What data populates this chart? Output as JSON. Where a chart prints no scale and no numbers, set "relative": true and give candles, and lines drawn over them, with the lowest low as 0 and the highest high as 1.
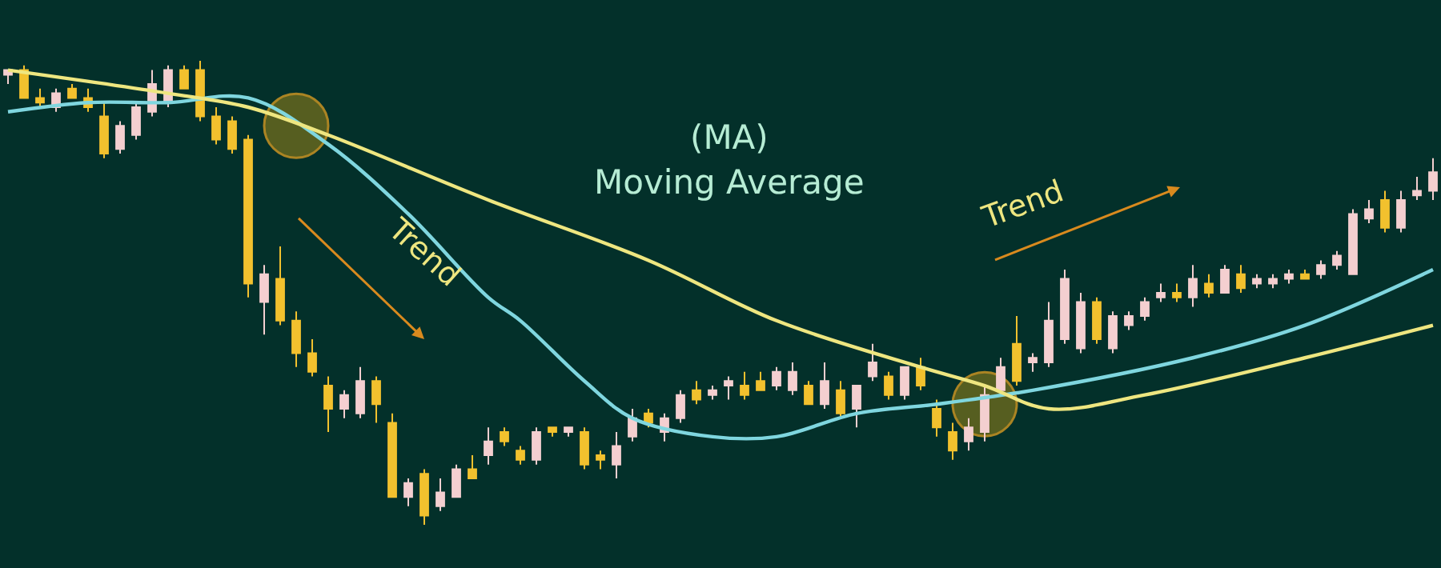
{
  "chart_data": {
    "type": "candlestick",
    "relative": true,
    "title": "(MA)",
    "subtitle": "Moving Average",
    "categories": [
      null,
      null,
      null,
      null,
      null,
      null,
      null,
      null,
      null,
      null,
      null,
      null,
      null,
      null,
      null,
      null,
      null,
      null,
      null,
      null,
      null,
      null,
      null,
      null,
      null,
      null,
      null,
      null,
      null,
      null,
      null,
      null,
      null,
      null,
      null,
      null,
      null,
      null,
      null,
      null,
      null,
      null,
      null,
      null,
      null,
      null,
      null,
      null,
      null,
      null,
      null,
      null,
      null,
      null,
      null,
      null,
      null,
      null,
      null,
      null,
      null,
      null,
      null,
      null,
      null,
      null,
      null,
      null,
      null,
      null,
      null,
      null,
      null,
      null,
      null,
      null,
      null,
      null,
      null,
      null,
      null,
      null,
      null,
      null,
      null,
      null,
      null,
      null,
      null,
      null
    ],
    "ohlc": [
      [
        0.97,
        0.98,
        0.95,
        0.98
      ],
      [
        0.98,
        0.99,
        0.92,
        0.92
      ],
      [
        0.92,
        0.94,
        0.9,
        0.91
      ],
      [
        0.9,
        0.94,
        0.89,
        0.93
      ],
      [
        0.94,
        0.95,
        0.92,
        0.92
      ],
      [
        0.92,
        0.94,
        0.89,
        0.9
      ],
      [
        0.88,
        0.91,
        0.79,
        0.8
      ],
      [
        0.81,
        0.87,
        0.8,
        0.86
      ],
      [
        0.84,
        0.91,
        0.83,
        0.9
      ],
      [
        0.89,
        0.98,
        0.88,
        0.95
      ],
      [
        0.91,
        0.99,
        0.9,
        0.98
      ],
      [
        0.98,
        0.99,
        0.94,
        0.94
      ],
      [
        0.98,
        1.0,
        0.87,
        0.88
      ],
      [
        0.88,
        0.9,
        0.82,
        0.83
      ],
      [
        0.87,
        0.88,
        0.8,
        0.81
      ],
      [
        0.83,
        0.84,
        0.49,
        0.52
      ],
      [
        0.48,
        0.56,
        0.41,
        0.54
      ],
      [
        0.53,
        0.6,
        0.43,
        0.44
      ],
      [
        0.44,
        0.46,
        0.34,
        0.37
      ],
      [
        0.37,
        0.4,
        0.32,
        0.33
      ],
      [
        0.3,
        0.32,
        0.2,
        0.25
      ],
      [
        0.25,
        0.29,
        0.23,
        0.28
      ],
      [
        0.24,
        0.34,
        0.23,
        0.31
      ],
      [
        0.31,
        0.32,
        0.22,
        0.26
      ],
      [
        0.22,
        0.24,
        0.06,
        0.06
      ],
      [
        0.06,
        0.1,
        0.04,
        0.09
      ],
      [
        0.11,
        0.12,
        0.0,
        0.02
      ],
      [
        0.04,
        0.1,
        0.03,
        0.07
      ],
      [
        0.06,
        0.13,
        0.06,
        0.12
      ],
      [
        0.12,
        0.15,
        0.1,
        0.1
      ],
      [
        0.15,
        0.21,
        0.13,
        0.18
      ],
      [
        0.2,
        0.21,
        0.17,
        0.18
      ],
      [
        0.16,
        0.17,
        0.13,
        0.14
      ],
      [
        0.14,
        0.21,
        0.13,
        0.2
      ],
      [
        0.21,
        0.21,
        0.19,
        0.2
      ],
      [
        0.2,
        0.21,
        0.19,
        0.21
      ],
      [
        0.2,
        0.21,
        0.12,
        0.13
      ],
      [
        0.15,
        0.16,
        0.12,
        0.14
      ],
      [
        0.13,
        0.2,
        0.1,
        0.17
      ],
      [
        0.19,
        0.25,
        0.18,
        0.23
      ],
      [
        0.24,
        0.25,
        0.21,
        0.22
      ],
      [
        0.2,
        0.24,
        0.18,
        0.23
      ],
      [
        0.23,
        0.29,
        0.22,
        0.28
      ],
      [
        0.29,
        0.31,
        0.26,
        0.27
      ],
      [
        0.28,
        0.3,
        0.27,
        0.29
      ],
      [
        0.3,
        0.32,
        0.27,
        0.31
      ],
      [
        0.3,
        0.33,
        0.27,
        0.28
      ],
      [
        0.31,
        0.33,
        0.29,
        0.29
      ],
      [
        0.3,
        0.34,
        0.29,
        0.33
      ],
      [
        0.29,
        0.35,
        0.28,
        0.33
      ],
      [
        0.3,
        0.31,
        0.26,
        0.26
      ],
      [
        0.26,
        0.35,
        0.25,
        0.31
      ],
      [
        0.29,
        0.31,
        0.23,
        0.24
      ],
      [
        0.25,
        0.3,
        0.21,
        0.3
      ],
      [
        0.32,
        0.39,
        0.31,
        0.35
      ],
      [
        0.32,
        0.33,
        0.27,
        0.28
      ],
      [
        0.28,
        0.34,
        0.27,
        0.34
      ],
      [
        0.34,
        0.36,
        0.29,
        0.3
      ],
      [
        0.25,
        0.27,
        0.19,
        0.21
      ],
      [
        0.2,
        0.22,
        0.14,
        0.16
      ],
      [
        0.18,
        0.23,
        0.16,
        0.21
      ],
      [
        0.2,
        0.3,
        0.18,
        0.28
      ],
      [
        0.29,
        0.36,
        0.28,
        0.34
      ],
      [
        0.39,
        0.45,
        0.3,
        0.31
      ],
      [
        0.35,
        0.37,
        0.33,
        0.36
      ],
      [
        0.35,
        0.48,
        0.34,
        0.44
      ],
      [
        0.4,
        0.55,
        0.39,
        0.53
      ],
      [
        0.38,
        0.5,
        0.37,
        0.48
      ],
      [
        0.48,
        0.49,
        0.39,
        0.4
      ],
      [
        0.38,
        0.46,
        0.37,
        0.45
      ],
      [
        0.43,
        0.46,
        0.42,
        0.45
      ],
      [
        0.45,
        0.49,
        0.44,
        0.48
      ],
      [
        0.49,
        0.52,
        0.48,
        0.5
      ],
      [
        0.5,
        0.52,
        0.48,
        0.49
      ],
      [
        0.49,
        0.56,
        0.47,
        0.53
      ],
      [
        0.52,
        0.54,
        0.49,
        0.5
      ],
      [
        0.5,
        0.56,
        0.5,
        0.55
      ],
      [
        0.54,
        0.56,
        0.5,
        0.51
      ],
      [
        0.52,
        0.54,
        0.51,
        0.53
      ],
      [
        0.52,
        0.54,
        0.51,
        0.53
      ],
      [
        0.53,
        0.55,
        0.52,
        0.54
      ],
      [
        0.54,
        0.55,
        0.53,
        0.53
      ],
      [
        0.54,
        0.57,
        0.53,
        0.56
      ],
      [
        0.56,
        0.59,
        0.55,
        0.58
      ],
      [
        0.54,
        0.68,
        0.54,
        0.67
      ],
      [
        0.66,
        0.7,
        0.65,
        0.68
      ],
      [
        0.7,
        0.72,
        0.63,
        0.64
      ],
      [
        0.64,
        0.72,
        0.63,
        0.7
      ],
      [
        0.71,
        0.75,
        0.7,
        0.72
      ],
      [
        0.72,
        0.79,
        0.7,
        0.76
      ]
    ],
    "series": [
      {
        "type": "line",
        "color": "#7fd6df",
        "values": [
          0.89,
          null,
          null,
          null,
          null,
          0.91,
          null,
          null,
          null,
          null,
          0.91,
          null,
          null,
          null,
          null,
          0.92,
          null,
          null,
          null,
          null,
          0.82,
          null,
          null,
          null,
          null,
          0.67,
          null,
          null,
          null,
          null,
          0.49,
          null,
          0.44,
          null,
          null,
          null,
          0.31,
          null,
          null,
          0.23,
          null,
          null,
          null,
          null,
          0.19,
          null,
          null,
          null,
          0.19,
          null,
          null,
          null,
          null,
          0.24,
          null,
          null,
          null,
          null,
          0.26,
          null,
          null,
          null,
          null,
          null,
          0.29,
          null,
          null,
          null,
          null,
          null,
          null,
          null,
          null,
          null,
          0.36,
          null,
          null,
          null,
          null,
          null,
          null,
          0.43,
          null,
          null,
          null,
          null,
          null,
          null,
          null,
          0.55
        ]
      },
      {
        "type": "line",
        "color": "#eee680",
        "values": [
          0.98,
          null,
          null,
          null,
          null,
          null,
          null,
          null,
          null,
          null,
          0.93,
          null,
          null,
          null,
          null,
          0.9,
          null,
          null,
          null,
          null,
          0.84,
          null,
          null,
          null,
          null,
          null,
          null,
          null,
          null,
          null,
          0.7,
          null,
          null,
          null,
          null,
          null,
          null,
          null,
          null,
          null,
          0.57,
          null,
          null,
          null,
          null,
          null,
          null,
          null,
          0.44,
          null,
          null,
          null,
          null,
          null,
          null,
          null,
          null,
          0.34,
          null,
          null,
          null,
          0.3,
          null,
          null,
          null,
          0.25,
          null,
          null,
          null,
          null,
          null,
          0.28,
          null,
          null,
          null,
          null,
          null,
          null,
          null,
          null,
          null,
          0.36,
          null,
          null,
          null,
          null,
          null,
          null,
          null,
          0.43
        ]
      },
      {
        "type": "scatter",
        "marker": "circle",
        "color": "#6b6a1e",
        "values": [
          null,
          null,
          null,
          null,
          null,
          null,
          null,
          null,
          null,
          null,
          null,
          null,
          null,
          null,
          null,
          null,
          null,
          null,
          0.86,
          null,
          null,
          null,
          null,
          null,
          null,
          null,
          null,
          null,
          null,
          null,
          null,
          null,
          null,
          null,
          null,
          null,
          null,
          null,
          null,
          null,
          null,
          null,
          null,
          null,
          null,
          null,
          null,
          null,
          null,
          null,
          null,
          null,
          null,
          null,
          null,
          null,
          null,
          null,
          null,
          null,
          null,
          0.26,
          null,
          null,
          null,
          null,
          null,
          null,
          null,
          null,
          null,
          null,
          null,
          null,
          null,
          null,
          null,
          null,
          null,
          null,
          null,
          null,
          null,
          null,
          null,
          null,
          null,
          null,
          null,
          null
        ]
      }
    ],
    "annotations": [
      "Trend",
      "Trend"
    ]
  }
}
